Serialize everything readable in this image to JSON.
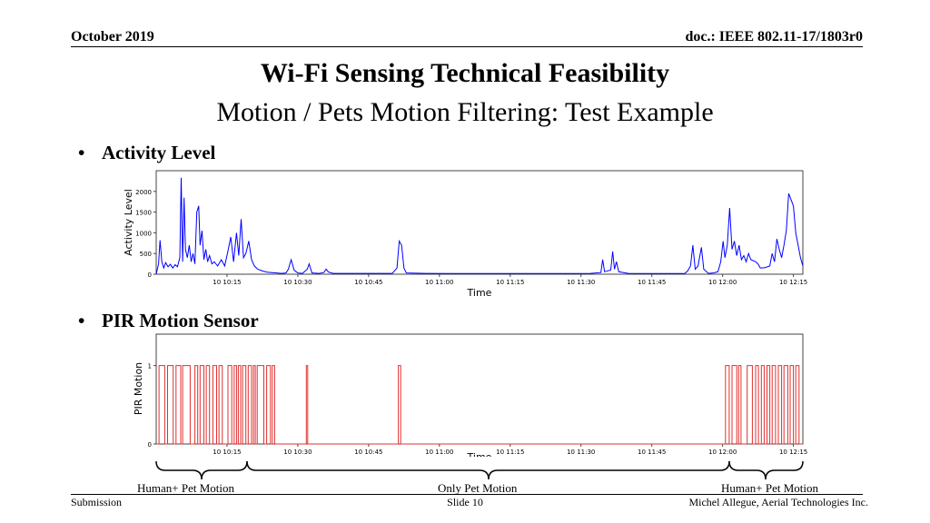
{
  "header": {
    "date": "October 2019",
    "doc": "doc.: IEEE 802.11-17/1803r0"
  },
  "title": "Wi-Fi Sensing Technical Feasibility",
  "subtitle": "Motion / Pets Motion Filtering: Test Example",
  "bullets": [
    {
      "label": "Activity Level"
    },
    {
      "label": "PIR Motion Sensor"
    }
  ],
  "colors": {
    "activity": "#0000ff",
    "pir": "#e03030"
  },
  "chart_data": [
    {
      "type": "line",
      "xlabel": "Time",
      "ylabel": "Activity Level",
      "x_ticks": [
        "10 10:15",
        "10 10:30",
        "10 10:45",
        "10 11:00",
        "10 11:15",
        "10 11:30",
        "10 11:45",
        "10 12:00",
        "10 12:15"
      ],
      "x_tick_minutes": [
        15,
        30,
        45,
        60,
        75,
        90,
        105,
        120,
        135
      ],
      "xlim_minutes": [
        0,
        137
      ],
      "ylim": [
        0,
        2500
      ],
      "y_ticks": [
        0,
        500,
        1000,
        1500,
        2000
      ],
      "series": [
        {
          "points": [
            [
              0,
              0
            ],
            [
              0.5,
              250
            ],
            [
              0.8,
              820
            ],
            [
              1.2,
              300
            ],
            [
              1.6,
              150
            ],
            [
              2,
              280
            ],
            [
              2.5,
              180
            ],
            [
              3,
              240
            ],
            [
              3.5,
              150
            ],
            [
              4,
              230
            ],
            [
              4.5,
              180
            ],
            [
              5,
              400
            ],
            [
              5.3,
              2330
            ],
            [
              5.6,
              300
            ],
            [
              5.9,
              1850
            ],
            [
              6.2,
              600
            ],
            [
              6.6,
              400
            ],
            [
              7,
              700
            ],
            [
              7.4,
              300
            ],
            [
              7.8,
              500
            ],
            [
              8.2,
              250
            ],
            [
              8.6,
              1500
            ],
            [
              9,
              1650
            ],
            [
              9.3,
              700
            ],
            [
              9.7,
              1050
            ],
            [
              10.1,
              350
            ],
            [
              10.5,
              600
            ],
            [
              10.9,
              300
            ],
            [
              11.3,
              450
            ],
            [
              11.8,
              250
            ],
            [
              12.3,
              300
            ],
            [
              13,
              200
            ],
            [
              13.8,
              350
            ],
            [
              14.5,
              200
            ],
            [
              15.2,
              560
            ],
            [
              15.8,
              900
            ],
            [
              16.4,
              300
            ],
            [
              17,
              1000
            ],
            [
              17.5,
              450
            ],
            [
              18,
              1330
            ],
            [
              18.5,
              400
            ],
            [
              19,
              500
            ],
            [
              19.6,
              800
            ],
            [
              20.2,
              350
            ],
            [
              20.8,
              200
            ],
            [
              21.5,
              120
            ],
            [
              22.5,
              80
            ],
            [
              23.5,
              50
            ],
            [
              24.5,
              40
            ],
            [
              25.5,
              30
            ],
            [
              26.5,
              20
            ],
            [
              27.5,
              30
            ],
            [
              28,
              120
            ],
            [
              28.6,
              350
            ],
            [
              29.2,
              100
            ],
            [
              30,
              30
            ],
            [
              31,
              20
            ],
            [
              32,
              120
            ],
            [
              32.4,
              250
            ],
            [
              33,
              30
            ],
            [
              34.5,
              20
            ],
            [
              35.5,
              40
            ],
            [
              36,
              120
            ],
            [
              36.5,
              50
            ],
            [
              37.5,
              20
            ],
            [
              40,
              20
            ],
            [
              45,
              20
            ],
            [
              50,
              20
            ],
            [
              51,
              150
            ],
            [
              51.5,
              800
            ],
            [
              52,
              700
            ],
            [
              52.5,
              150
            ],
            [
              53,
              30
            ],
            [
              57,
              20
            ],
            [
              62,
              15
            ],
            [
              67,
              15
            ],
            [
              72,
              15
            ],
            [
              77,
              15
            ],
            [
              82,
              15
            ],
            [
              87,
              15
            ],
            [
              92,
              20
            ],
            [
              94.2,
              40
            ],
            [
              94.6,
              350
            ],
            [
              95,
              60
            ],
            [
              96.3,
              100
            ],
            [
              96.7,
              550
            ],
            [
              97.1,
              120
            ],
            [
              97.5,
              300
            ],
            [
              98,
              60
            ],
            [
              100,
              20
            ],
            [
              105,
              15
            ],
            [
              110,
              15
            ],
            [
              112,
              20
            ],
            [
              112.6,
              80
            ],
            [
              113.2,
              200
            ],
            [
              113.7,
              700
            ],
            [
              114.2,
              120
            ],
            [
              114.8,
              200
            ],
            [
              115.5,
              650
            ],
            [
              116,
              120
            ],
            [
              117,
              20
            ],
            [
              118,
              30
            ],
            [
              119,
              60
            ],
            [
              119.6,
              300
            ],
            [
              120.1,
              800
            ],
            [
              120.5,
              400
            ],
            [
              121,
              700
            ],
            [
              121.5,
              1600
            ],
            [
              122,
              600
            ],
            [
              122.5,
              800
            ],
            [
              123,
              450
            ],
            [
              123.5,
              700
            ],
            [
              124,
              350
            ],
            [
              124.5,
              450
            ],
            [
              125,
              300
            ],
            [
              125.5,
              500
            ],
            [
              126,
              350
            ],
            [
              127,
              300
            ],
            [
              127.5,
              250
            ],
            [
              128,
              150
            ],
            [
              129,
              160
            ],
            [
              130,
              200
            ],
            [
              130.5,
              500
            ],
            [
              131,
              300
            ],
            [
              131.5,
              850
            ],
            [
              132,
              600
            ],
            [
              132.5,
              400
            ],
            [
              133,
              700
            ],
            [
              133.5,
              1050
            ],
            [
              134,
              1950
            ],
            [
              134.5,
              1800
            ],
            [
              135,
              1650
            ],
            [
              135.5,
              1000
            ],
            [
              136,
              700
            ],
            [
              136.5,
              400
            ],
            [
              137,
              200
            ]
          ]
        }
      ]
    },
    {
      "type": "line",
      "xlabel": "Time",
      "ylabel": "PIR Motion",
      "x_ticks": [
        "10 10:15",
        "10 10:30",
        "10 10:45",
        "10 11:00",
        "10 11:15",
        "10 11:30",
        "10 11:45",
        "10 12:00",
        "10 12:15"
      ],
      "x_tick_minutes": [
        15,
        30,
        45,
        60,
        75,
        90,
        105,
        120,
        135
      ],
      "xlim_minutes": [
        0,
        137
      ],
      "ylim": [
        0,
        1.4
      ],
      "y_ticks": [
        0,
        1
      ],
      "series": [
        {
          "on_intervals_minutes": [
            [
              0.6,
              1.8
            ],
            [
              2.4,
              3.6
            ],
            [
              4.2,
              5.2
            ],
            [
              5.6,
              7.2
            ],
            [
              8.2,
              8.8
            ],
            [
              9.3,
              10.1
            ],
            [
              10.6,
              11.3
            ],
            [
              12,
              12.8
            ],
            [
              13.3,
              14
            ],
            [
              15.2,
              16
            ],
            [
              16.5,
              17
            ],
            [
              17.4,
              17.9
            ],
            [
              18.3,
              19
            ],
            [
              19.5,
              20.2
            ],
            [
              20.6,
              21
            ],
            [
              21.4,
              22.8
            ],
            [
              23.4,
              24.2
            ],
            [
              24.6,
              25.1
            ],
            [
              31.8,
              32.1
            ],
            [
              51.3,
              51.8
            ],
            [
              120.6,
              121.4
            ],
            [
              122,
              123
            ],
            [
              123.4,
              123.9
            ],
            [
              125.2,
              126.3
            ],
            [
              127,
              127.6
            ],
            [
              128.2,
              128.8
            ],
            [
              129.4,
              130
            ],
            [
              130.5,
              131.2
            ],
            [
              131.8,
              132.5
            ],
            [
              133,
              133.8
            ],
            [
              134.3,
              135
            ],
            [
              135.5,
              136.2
            ]
          ]
        }
      ]
    }
  ],
  "annotations": {
    "segments": [
      {
        "label": "Human+ Pet Motion"
      },
      {
        "label": "Only Pet Motion"
      },
      {
        "label": "Human+ Pet Motion"
      }
    ]
  },
  "footer": {
    "left": "Submission",
    "center": "Slide 10",
    "right": "Michel Allegue, Aerial Technologies Inc."
  }
}
